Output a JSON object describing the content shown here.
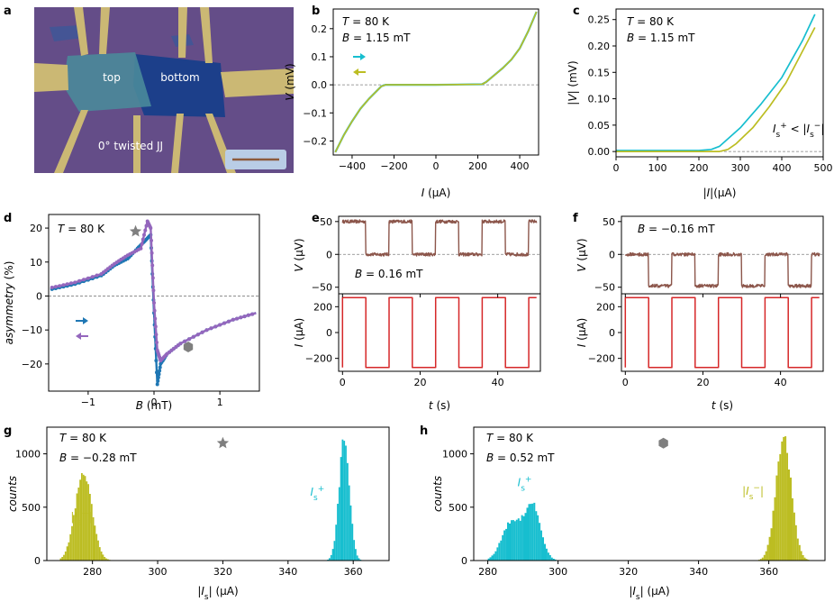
{
  "colors": {
    "cyan": "#17becf",
    "olive": "#bcbd22",
    "blue": "#1f77b4",
    "purple": "#9467bd",
    "brown": "#8c564b",
    "red": "#d62728",
    "gray": "#7f7f7f"
  },
  "panel_a": {
    "label": "a",
    "label_top": "top",
    "label_bottom": "bottom",
    "caption": "0° twisted JJ"
  },
  "chart_data": [
    {
      "id": "b",
      "type": "line",
      "panel_label": "b",
      "xlabel": "I (μA)",
      "ylabel": "V (mV)",
      "xlim": [
        -490,
        490
      ],
      "ylim": [
        -0.25,
        0.27
      ],
      "xticks": [
        -400,
        -200,
        0,
        200,
        400
      ],
      "yticks": [
        -0.2,
        -0.1,
        0.0,
        0.1,
        0.2
      ],
      "xtick_labels": [
        "−400",
        "−200",
        "0",
        "200",
        "400"
      ],
      "ytick_labels": [
        "−0.2",
        "−0.1",
        "0.0",
        "0.1",
        "0.2"
      ],
      "annotations": [
        "T = 80 K",
        "B = 1.15 mT"
      ],
      "legend_arrows": [
        {
          "direction": "right",
          "color": "#17becf"
        },
        {
          "direction": "left",
          "color": "#bcbd22"
        }
      ],
      "series": [
        {
          "name": "up sweep",
          "color": "#17becf",
          "x": [
            -480,
            -440,
            -400,
            -360,
            -320,
            -280,
            -260,
            -240,
            0,
            220,
            240,
            280,
            320,
            360,
            400,
            440,
            480
          ],
          "y": [
            -0.24,
            -0.18,
            -0.13,
            -0.085,
            -0.05,
            -0.02,
            -0.005,
            0.0,
            0.0,
            0.002,
            0.01,
            0.035,
            0.06,
            0.09,
            0.13,
            0.19,
            0.26
          ]
        },
        {
          "name": "down sweep",
          "color": "#bcbd22",
          "x": [
            -480,
            -440,
            -400,
            -360,
            -320,
            -280,
            -260,
            -240,
            0,
            220,
            240,
            280,
            320,
            360,
            400,
            440,
            480
          ],
          "y": [
            -0.24,
            -0.18,
            -0.13,
            -0.085,
            -0.05,
            -0.02,
            -0.005,
            0.0,
            0.0,
            0.002,
            0.01,
            0.035,
            0.06,
            0.09,
            0.13,
            0.19,
            0.26
          ]
        }
      ]
    },
    {
      "id": "c",
      "type": "line",
      "panel_label": "c",
      "xlabel": "|I|(μA)",
      "ylabel": "|V| (mV)",
      "xlim": [
        0,
        500
      ],
      "ylim": [
        -0.01,
        0.27
      ],
      "xticks": [
        0,
        100,
        200,
        300,
        400,
        500
      ],
      "yticks": [
        0.0,
        0.05,
        0.1,
        0.15,
        0.2,
        0.25
      ],
      "xtick_labels": [
        "0",
        "100",
        "200",
        "300",
        "400",
        "500"
      ],
      "ytick_labels": [
        "0.00",
        "0.05",
        "0.10",
        "0.15",
        "0.20",
        "0.25"
      ],
      "annotations": [
        "T = 80 K",
        "B = 1.15 mT",
        "I_s^+ < |I_s^−|"
      ],
      "series": [
        {
          "name": "I+",
          "color": "#17becf",
          "x": [
            0,
            200,
            230,
            250,
            300,
            350,
            400,
            450,
            480
          ],
          "y": [
            0.002,
            0.002,
            0.004,
            0.01,
            0.045,
            0.09,
            0.14,
            0.21,
            0.26
          ]
        },
        {
          "name": "|I-|",
          "color": "#bcbd22",
          "x": [
            0,
            250,
            270,
            290,
            330,
            370,
            410,
            450,
            480
          ],
          "y": [
            0.0,
            0.0,
            0.004,
            0.015,
            0.045,
            0.085,
            0.13,
            0.19,
            0.235
          ]
        }
      ]
    },
    {
      "id": "d",
      "type": "line",
      "panel_label": "d",
      "xlabel": "B (mT)",
      "ylabel": "asymmetry (%)",
      "xlim": [
        -1.6,
        1.6
      ],
      "ylim": [
        -28,
        24
      ],
      "xticks": [
        -1,
        0,
        1
      ],
      "yticks": [
        -20,
        -10,
        0,
        10,
        20
      ],
      "xtick_labels": [
        "−1",
        "0",
        "1"
      ],
      "ytick_labels": [
        "−20",
        "−10",
        "0",
        "10",
        "20"
      ],
      "annotations": [
        "T = 80 K"
      ],
      "legend_arrows": [
        {
          "direction": "right",
          "color": "#1f77b4"
        },
        {
          "direction": "left",
          "color": "#9467bd"
        }
      ],
      "markers": [
        {
          "shape": "star",
          "B": -0.28,
          "asym": 19,
          "color": "#7f7f7f"
        },
        {
          "shape": "hexagon",
          "B": 0.52,
          "asym": -15,
          "color": "#7f7f7f"
        }
      ],
      "series": [
        {
          "name": "up sweep",
          "color": "#1f77b4",
          "x": [
            -1.55,
            -1.2,
            -0.8,
            -0.6,
            -0.4,
            -0.25,
            -0.15,
            -0.05,
            0.0,
            0.05,
            0.1,
            0.2,
            0.4,
            0.8,
            1.2,
            1.55
          ],
          "y": [
            2,
            3.5,
            6,
            9,
            11,
            14,
            16,
            18,
            -5,
            -26,
            -20,
            -17,
            -14,
            -10,
            -7,
            -5
          ]
        },
        {
          "name": "down sweep",
          "color": "#9467bd",
          "x": [
            -1.55,
            -1.2,
            -0.8,
            -0.6,
            -0.4,
            -0.2,
            -0.1,
            -0.05,
            0.0,
            0.05,
            0.1,
            0.2,
            0.4,
            0.8,
            1.2,
            1.55
          ],
          "y": [
            2.5,
            4,
            6.5,
            9.5,
            12,
            14,
            22,
            20,
            -2,
            -16,
            -19,
            -17,
            -14,
            -10,
            -7,
            -5
          ]
        }
      ]
    },
    {
      "id": "e",
      "type": "line",
      "panel_label": "e",
      "xlabel": "t (s)",
      "ylabel_top": "V (μV)",
      "ylabel_bottom": "I (μA)",
      "xlim": [
        -1,
        51
      ],
      "ylim_top": [
        -60,
        58
      ],
      "ylim_bottom": [
        -300,
        300
      ],
      "xticks": [
        0,
        20,
        40
      ],
      "xtick_labels": [
        "0",
        "20",
        "40"
      ],
      "yticks_top": [
        -50,
        0,
        50
      ],
      "ytick_labels_top": [
        "−50",
        "0",
        "50"
      ],
      "yticks_bottom": [
        -200,
        0,
        200
      ],
      "ytick_labels_bottom": [
        "−200",
        "0",
        "200"
      ],
      "annotations": [
        "B = 0.16 mT"
      ],
      "voltage_levels_uV": [
        50,
        0
      ],
      "current_levels_uA": [
        270,
        -270
      ],
      "period_s": 12,
      "duration_s": 50,
      "phase": "V high while I positive",
      "colors": {
        "voltage": "#8c564b",
        "current": "#d62728"
      }
    },
    {
      "id": "f",
      "type": "line",
      "panel_label": "f",
      "xlabel": "t (s)",
      "ylabel_top": "V (μV)",
      "ylabel_bottom": "I (μA)",
      "xlim": [
        -1,
        51
      ],
      "ylim_top": [
        -60,
        58
      ],
      "ylim_bottom": [
        -300,
        300
      ],
      "xticks": [
        0,
        20,
        40
      ],
      "xtick_labels": [
        "0",
        "20",
        "40"
      ],
      "yticks_top": [
        -50,
        0,
        50
      ],
      "ytick_labels_top": [
        "−50",
        "0",
        "50"
      ],
      "yticks_bottom": [
        -200,
        0,
        200
      ],
      "ytick_labels_bottom": [
        "−200",
        "0",
        "200"
      ],
      "annotations": [
        "B = −0.16 mT"
      ],
      "voltage_levels_uV": [
        0,
        -48
      ],
      "current_levels_uA": [
        270,
        -270
      ],
      "period_s": 12,
      "duration_s": 50,
      "phase": "V low while I negative",
      "colors": {
        "voltage": "#8c564b",
        "current": "#d62728"
      }
    },
    {
      "id": "g",
      "type": "bar",
      "subtype": "histogram",
      "panel_label": "g",
      "xlabel": "|I_s| (μA)",
      "ylabel": "counts",
      "xlim": [
        266,
        371
      ],
      "ylim": [
        0,
        1250
      ],
      "xticks": [
        280,
        300,
        320,
        340,
        360
      ],
      "xtick_labels": [
        "280",
        "300",
        "320",
        "340",
        "360"
      ],
      "yticks": [
        0,
        500,
        1000
      ],
      "ytick_labels": [
        "0",
        "500",
        "1000"
      ],
      "annotations": [
        "T = 80 K",
        "B = −0.28 mT"
      ],
      "marker": {
        "shape": "star",
        "x": 320,
        "y": 1100,
        "color": "#7f7f7f"
      },
      "series": [
        {
          "name": "|I_s^−|",
          "color": "#bcbd22",
          "components": [
            {
              "center": 277,
              "sigma": 2.6,
              "peak": 800
            }
          ],
          "range": [
            270,
            285
          ]
        },
        {
          "name": "I_s^+",
          "color": "#17becf",
          "components": [
            {
              "center": 357,
              "sigma": 1.6,
              "peak": 1130
            }
          ],
          "range": [
            352,
            362
          ]
        }
      ]
    },
    {
      "id": "h",
      "type": "bar",
      "subtype": "histogram",
      "panel_label": "h",
      "xlabel": "|I_s| (μA)",
      "ylabel": "counts",
      "xlim": [
        276,
        376
      ],
      "ylim": [
        0,
        1250
      ],
      "xticks": [
        280,
        300,
        320,
        340,
        360
      ],
      "xtick_labels": [
        "280",
        "300",
        "320",
        "340",
        "360"
      ],
      "yticks": [
        0,
        500,
        1000
      ],
      "ytick_labels": [
        "0",
        "500",
        "1000"
      ],
      "annotations": [
        "T = 80 K",
        "B = 0.52 mT"
      ],
      "marker": {
        "shape": "hexagon",
        "x": 330,
        "y": 1100,
        "color": "#7f7f7f"
      },
      "series": [
        {
          "name": "I_s^+",
          "color": "#17becf",
          "components": [
            {
              "center": 286.5,
              "sigma": 2.7,
              "peak": 360
            },
            {
              "center": 292.5,
              "sigma": 2.3,
              "peak": 510
            }
          ],
          "range": [
            280,
            299
          ]
        },
        {
          "name": "|I_s^−|",
          "color": "#bcbd22",
          "components": [
            {
              "center": 364,
              "sigma": 2.2,
              "peak": 1140
            }
          ],
          "range": [
            357,
            371
          ]
        }
      ]
    }
  ]
}
